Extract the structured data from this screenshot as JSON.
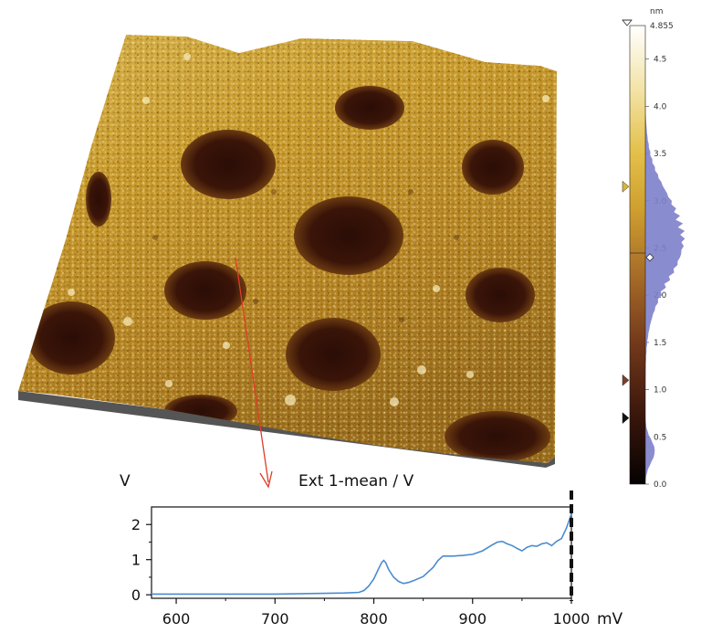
{
  "afm_image": {
    "surface_palette": [
      "#2a0d06",
      "#4a1d0c",
      "#7e4e16",
      "#b98826",
      "#d9b442",
      "#efd785",
      "#fbf2d3"
    ]
  },
  "color_scale": {
    "unit": "nm",
    "max_label": "4.855",
    "ticks": [
      "4.5",
      "4.0",
      "3.5",
      "3.0",
      "2.5",
      "2.0",
      "1.5",
      "1.0",
      "0.5",
      "0.0"
    ],
    "min": 0.0,
    "max": 4.855,
    "histogram_color": "#7d7fcb",
    "markers": [
      {
        "name": "upper-limit",
        "value": 3.15,
        "color": "#d9b43a"
      },
      {
        "name": "center",
        "value": 2.4,
        "color": "#ffffff"
      },
      {
        "name": "mid-marker",
        "value": 1.1,
        "color": "#7a3f2d"
      },
      {
        "name": "lower-limit",
        "value": 0.7,
        "color": "#111111"
      }
    ]
  },
  "spectrum": {
    "title": "Ext 1-mean / V",
    "y_unit": "V",
    "x_unit": "mV",
    "line_color": "#4a8bd0",
    "arrow_color": "#e03c28",
    "cursor_x_mv": 1000
  },
  "chart_data": {
    "type": "line",
    "title": "Ext 1-mean / V",
    "ylabel": "V",
    "xlabel": "mV",
    "xlim": [
      575,
      1000
    ],
    "ylim": [
      -0.1,
      2.5
    ],
    "xticks": [
      600,
      700,
      800,
      900,
      1000
    ],
    "yticks": [
      0,
      1,
      2
    ],
    "x": [
      575,
      600,
      650,
      700,
      750,
      770,
      785,
      790,
      795,
      800,
      805,
      808,
      810,
      812,
      815,
      820,
      825,
      830,
      835,
      840,
      850,
      860,
      865,
      870,
      880,
      890,
      900,
      910,
      920,
      925,
      930,
      935,
      940,
      945,
      950,
      955,
      960,
      965,
      970,
      975,
      980,
      985,
      990,
      995,
      1000
    ],
    "y": [
      0.02,
      0.02,
      0.02,
      0.02,
      0.04,
      0.05,
      0.07,
      0.12,
      0.25,
      0.45,
      0.75,
      0.92,
      0.98,
      0.92,
      0.72,
      0.5,
      0.38,
      0.32,
      0.35,
      0.4,
      0.52,
      0.78,
      0.98,
      1.1,
      1.1,
      1.12,
      1.15,
      1.25,
      1.42,
      1.5,
      1.52,
      1.45,
      1.4,
      1.32,
      1.25,
      1.35,
      1.4,
      1.38,
      1.45,
      1.48,
      1.4,
      1.52,
      1.6,
      1.9,
      2.3
    ]
  }
}
